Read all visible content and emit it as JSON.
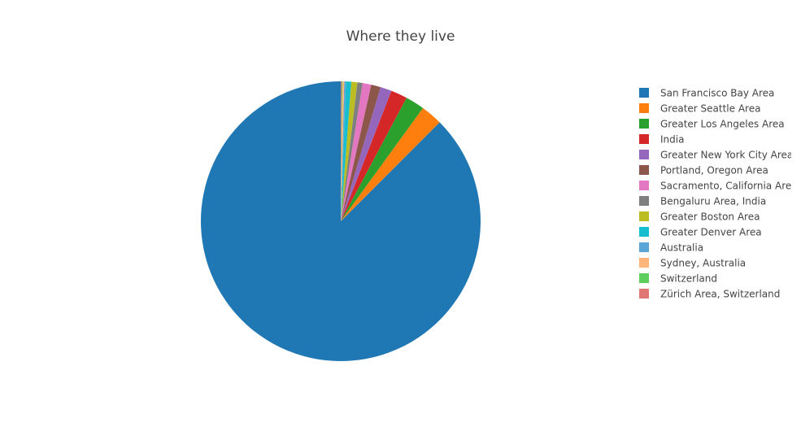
{
  "chart_data": {
    "type": "pie",
    "title": "Where they live",
    "legend_position": "right",
    "direction": "counterclockwise",
    "start": "top",
    "slices": [
      {
        "label": "San Francisco Bay Area",
        "value": 87.5,
        "color": "#1f77b4"
      },
      {
        "label": "Greater Seattle Area",
        "value": 2.5,
        "color": "#ff7f0e"
      },
      {
        "label": "Greater Los Angeles Area",
        "value": 2.2,
        "color": "#2ca02c"
      },
      {
        "label": "India",
        "value": 1.9,
        "color": "#d62728"
      },
      {
        "label": "Greater New York City Area",
        "value": 1.3,
        "color": "#9467bd"
      },
      {
        "label": "Portland, Oregon Area",
        "value": 1.1,
        "color": "#8c564b"
      },
      {
        "label": "Sacramento, California Area",
        "value": 1.0,
        "color": "#e377c2"
      },
      {
        "label": "Bengaluru Area, India",
        "value": 0.6,
        "color": "#7f7f7f"
      },
      {
        "label": "Greater Boston Area",
        "value": 0.7,
        "color": "#bcbd22"
      },
      {
        "label": "Greater Denver Area",
        "value": 0.6,
        "color": "#17becf"
      },
      {
        "label": "Australia",
        "value": 0.2,
        "color": "#5aa6d6"
      },
      {
        "label": "Sydney, Australia",
        "value": 0.2,
        "color": "#ffb57a"
      },
      {
        "label": "Switzerland",
        "value": 0.1,
        "color": "#5ecf5e"
      },
      {
        "label": "Zürich Area, Switzerland",
        "value": 0.1,
        "color": "#e07676"
      }
    ]
  }
}
